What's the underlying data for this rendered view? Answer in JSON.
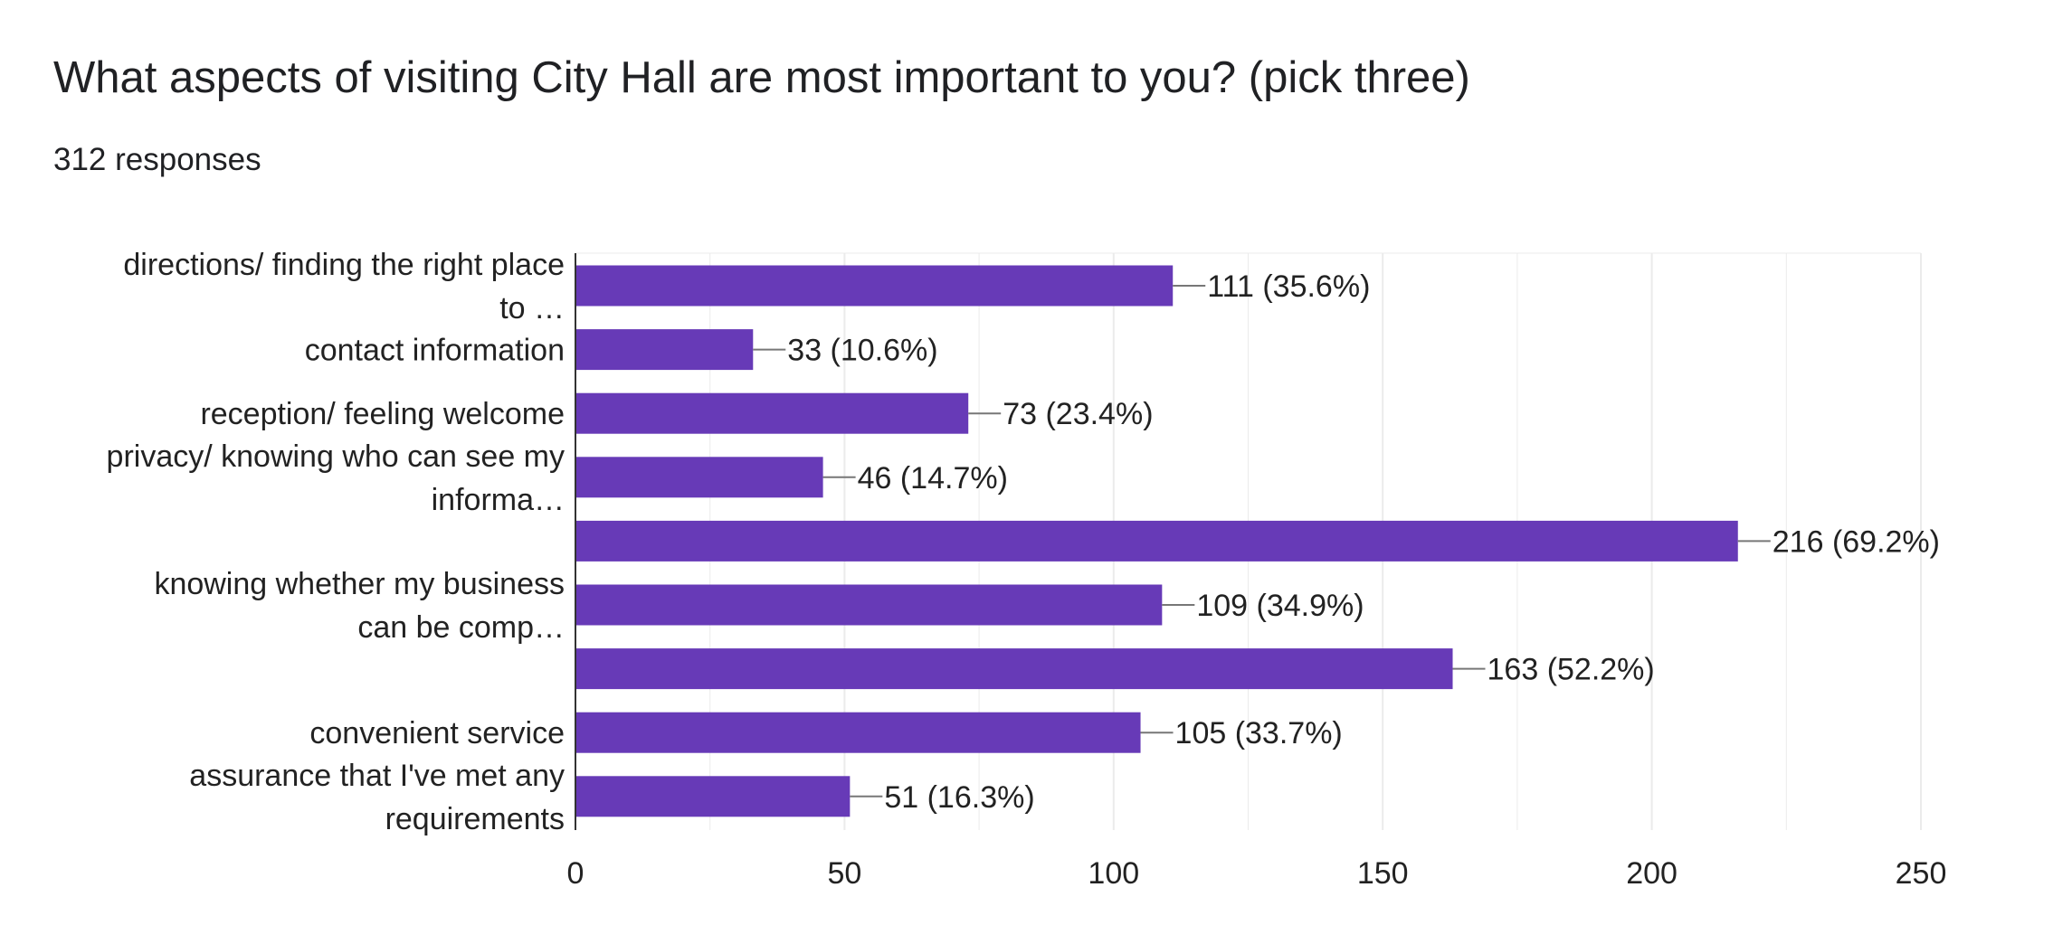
{
  "title": "What aspects of visiting City Hall are most important to you? (pick three)",
  "subtitle": "312 responses",
  "colors": {
    "bar": "#673ab7",
    "grid": "#ebebeb",
    "axis": "#333333",
    "text": "#222222"
  },
  "chart_data": {
    "type": "bar",
    "orientation": "horizontal",
    "title": "What aspects of visiting City Hall are most important to you? (pick three)",
    "xlim": [
      0,
      250
    ],
    "xticks": [
      "0",
      "50",
      "100",
      "150",
      "200",
      "250"
    ],
    "grid": true,
    "categories": [
      [
        "directions/ finding the right place",
        "to …"
      ],
      [
        "contact information"
      ],
      [
        "reception/ feeling welcome"
      ],
      [
        "privacy/ knowing who can see my",
        "informa…"
      ],
      [],
      [
        "knowing whether my business",
        "can be comp…"
      ],
      [],
      [
        "convenient service"
      ],
      [
        "assurance that I've met any",
        "requirements"
      ]
    ],
    "values": [
      111,
      33,
      73,
      46,
      216,
      109,
      163,
      105,
      51
    ],
    "data_labels": [
      "111 (35.6%)",
      "33 (10.6%)",
      "73 (23.4%)",
      "46 (14.7%)",
      "216 (69.2%)",
      "109 (34.9%)",
      "163 (52.2%)",
      "105 (33.7%)",
      "51 (16.3%)"
    ]
  }
}
